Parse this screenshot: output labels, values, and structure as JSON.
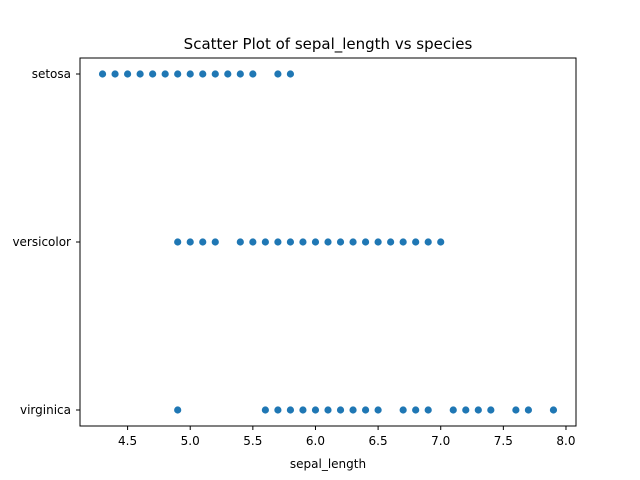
{
  "chart_data": {
    "type": "scatter",
    "title": "Scatter Plot of sepal_length vs species",
    "xlabel": "sepal_length",
    "ylabel": "",
    "xlim": [
      4.12,
      8.08
    ],
    "x_ticks": [
      "4.5",
      "5.0",
      "5.5",
      "6.0",
      "6.5",
      "7.0",
      "7.5",
      "8.0"
    ],
    "y_categories": [
      "setosa",
      "versicolor",
      "virginica"
    ],
    "grid": false,
    "legend": "none",
    "marker_color": "#1f77b4",
    "series": [
      {
        "category": "setosa",
        "x": [
          4.3,
          4.4,
          4.5,
          4.6,
          4.7,
          4.8,
          4.9,
          5.0,
          5.1,
          5.2,
          5.3,
          5.4,
          5.5,
          5.7,
          5.8
        ]
      },
      {
        "category": "versicolor",
        "x": [
          4.9,
          5.0,
          5.1,
          5.2,
          5.4,
          5.5,
          5.6,
          5.7,
          5.8,
          5.9,
          6.0,
          6.1,
          6.2,
          6.3,
          6.4,
          6.5,
          6.6,
          6.7,
          6.8,
          6.9,
          7.0
        ]
      },
      {
        "category": "virginica",
        "x": [
          4.9,
          5.6,
          5.7,
          5.8,
          5.9,
          6.0,
          6.1,
          6.2,
          6.3,
          6.4,
          6.5,
          6.7,
          6.8,
          6.9,
          7.1,
          7.2,
          7.3,
          7.4,
          7.6,
          7.7,
          7.9
        ]
      }
    ]
  }
}
